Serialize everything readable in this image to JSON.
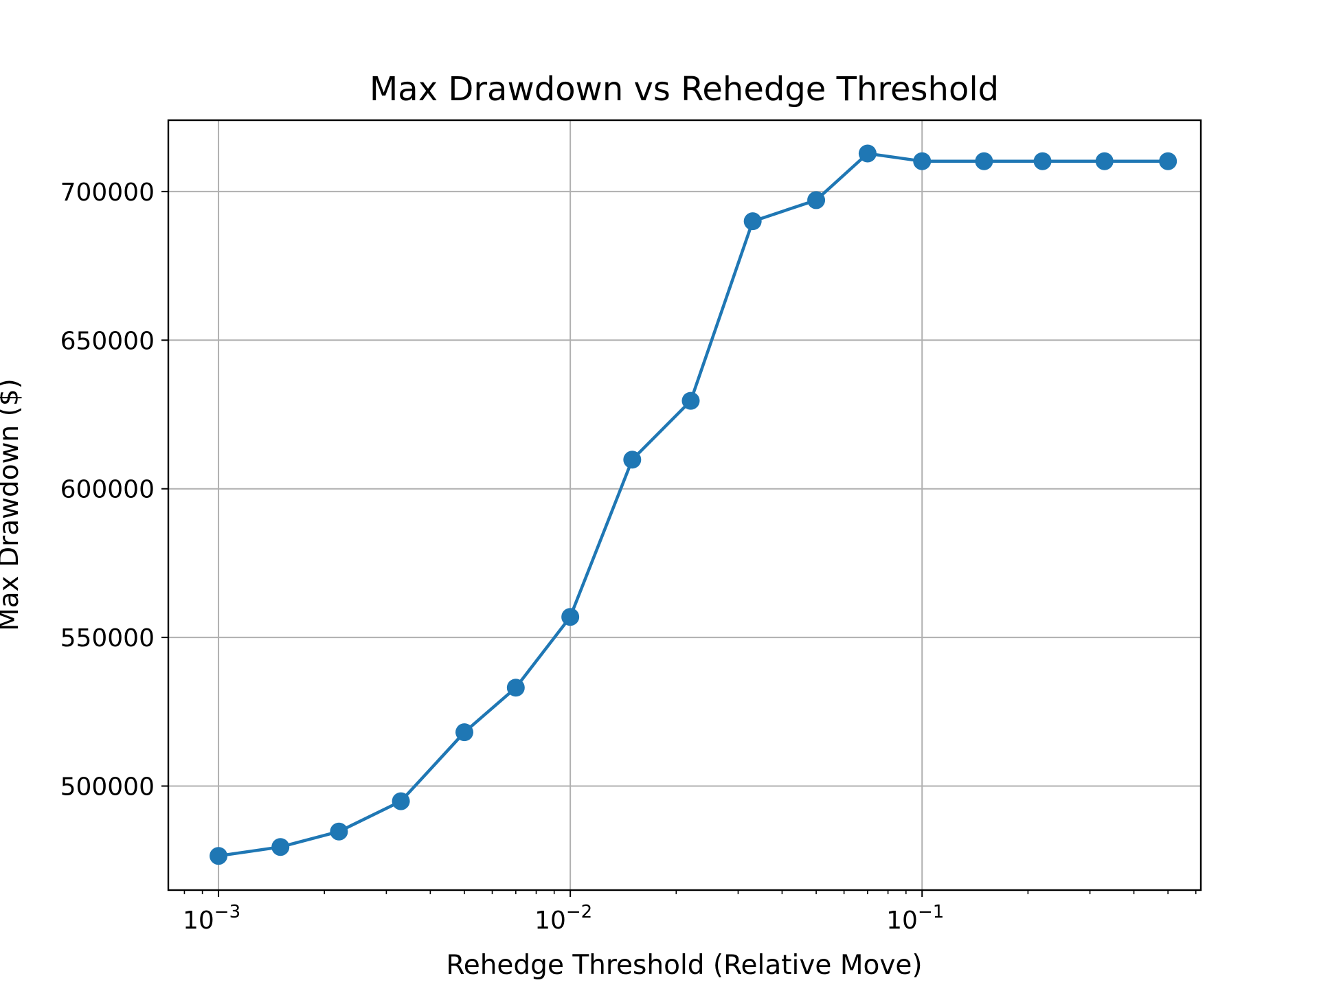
{
  "chart_data": {
    "type": "line",
    "title": "Max Drawdown vs Rehedge Threshold",
    "xlabel": "Rehedge Threshold (Relative Move)",
    "ylabel": "Max Drawdown ($)",
    "x_scale": "log",
    "xlim": [
      0.00072,
      0.62
    ],
    "ylim": [
      465000,
      724000
    ],
    "grid": true,
    "x_ticks": [
      {
        "value": 0.001,
        "base": "10",
        "exp": "−3"
      },
      {
        "value": 0.01,
        "base": "10",
        "exp": "−2"
      },
      {
        "value": 0.1,
        "base": "10",
        "exp": "−1"
      }
    ],
    "y_ticks": [
      500000,
      550000,
      600000,
      650000,
      700000
    ],
    "color": "#1f77b4",
    "series": [
      {
        "x": [
          0.001,
          0.0015,
          0.0022,
          0.0033,
          0.005,
          0.007,
          0.01,
          0.015,
          0.022,
          0.033,
          0.05,
          0.07,
          0.1,
          0.15,
          0.22,
          0.33,
          0.5
        ],
        "y": [
          476500,
          479500,
          484700,
          494900,
          518100,
          533100,
          556900,
          609800,
          629600,
          690000,
          697100,
          712800,
          710200,
          710200,
          710200,
          710200,
          710200
        ]
      }
    ]
  }
}
